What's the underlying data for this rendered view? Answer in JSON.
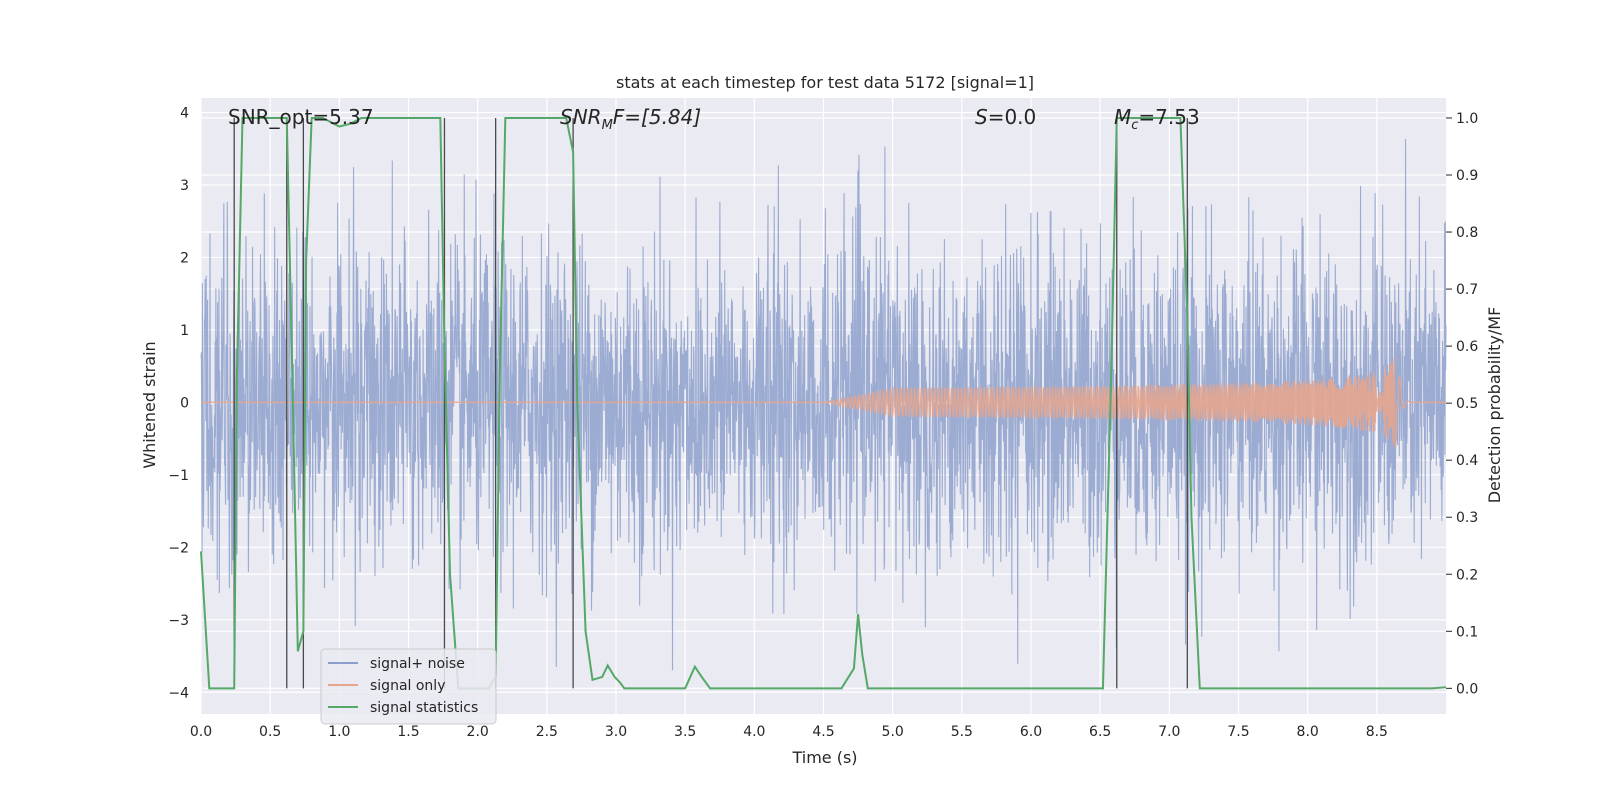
{
  "chart_data": {
    "type": "line",
    "title": "stats at each timestep for test data 5172 [signal=1]",
    "xlabel": "Time (s)",
    "ylabel_left": "Whitened strain",
    "ylabel_right": "Detection probability/MF",
    "xlim": [
      0.0,
      9.0
    ],
    "ylim_left": [
      -4.3,
      4.2
    ],
    "ylim_right": [
      -0.045,
      1.035
    ],
    "x_ticks": [
      "0.0",
      "0.5",
      "1.0",
      "1.5",
      "2.0",
      "2.5",
      "3.0",
      "3.5",
      "4.0",
      "4.5",
      "5.0",
      "5.5",
      "6.0",
      "6.5",
      "7.0",
      "7.5",
      "8.0",
      "8.5"
    ],
    "y_ticks_left": [
      "−4",
      "−3",
      "−2",
      "−1",
      "0",
      "1",
      "2",
      "3",
      "4"
    ],
    "y_ticks_right": [
      "0.0",
      "0.1",
      "0.2",
      "0.3",
      "0.4",
      "0.5",
      "0.6",
      "0.7",
      "0.8",
      "0.9",
      "1.0"
    ],
    "grid": true,
    "legend_position": "lower-left",
    "annotations": [
      {
        "label": "SNR_opt=5.37",
        "x": 0.2,
        "y": 3.85
      },
      {
        "label": "SNR_MF=[5.84]",
        "x": 2.6,
        "y": 3.85
      },
      {
        "label": "S=0.0",
        "x": 5.6,
        "y": 3.85
      },
      {
        "label": "M_c=7.53",
        "x": 6.6,
        "y": 3.85
      }
    ],
    "annotation_parts": {
      "snr_opt": "SNR_opt=5.37",
      "snr_mf_main": "SNR",
      "snr_mf_sub": "M",
      "snr_mf_rest": "F=[5.84]",
      "s_main": "S",
      "s_rest": "=0.0",
      "mc_main": "M",
      "mc_sub": "c",
      "mc_rest": "=7.53"
    },
    "vertical_lines_s": [
      0.24,
      0.62,
      0.74,
      1.76,
      2.13,
      2.69,
      6.62,
      7.13
    ],
    "series": [
      {
        "name": "signal+ noise",
        "color": "#8da0cb",
        "axis": "left",
        "description": "whitened strain, noise amplitude approx within [-3.7, 3.7]",
        "noise_sigma": 1.1,
        "noise_peak": 3.7
      },
      {
        "name": "signal only",
        "color": "#e5a58e",
        "axis": "left",
        "description": "chirp signal, amplitude growing to about 0.75 at t=8.65 s then ringdown",
        "chirp_start": 4.5,
        "chirp_merge": 8.65,
        "peak_amplitude": 0.75
      },
      {
        "name": "signal statistics",
        "color": "#55a868",
        "axis": "right",
        "x": [
          0.0,
          0.06,
          0.18,
          0.24,
          0.26,
          0.3,
          0.62,
          0.66,
          0.7,
          0.74,
          0.76,
          0.8,
          0.88,
          1.0,
          1.08,
          1.16,
          1.2,
          1.73,
          1.76,
          1.8,
          1.86,
          1.93,
          2.02,
          2.08,
          2.13,
          2.16,
          2.2,
          2.64,
          2.69,
          2.72,
          2.78,
          2.83,
          2.9,
          2.94,
          2.99,
          3.03,
          3.06,
          3.1,
          3.12,
          3.2,
          3.3,
          3.4,
          3.5,
          3.57,
          3.62,
          3.68,
          3.8,
          4.0,
          4.2,
          4.4,
          4.55,
          4.63,
          4.72,
          4.75,
          4.78,
          4.82,
          5.0,
          5.5,
          6.0,
          6.52,
          6.58,
          6.62,
          6.67,
          6.75,
          6.9,
          7.08,
          7.13,
          7.16,
          7.22,
          7.3,
          7.5,
          8.0,
          8.5,
          8.9,
          9.0
        ],
        "y": [
          0.24,
          0.0,
          0.0,
          0.0,
          0.55,
          1.0,
          1.0,
          0.55,
          0.065,
          0.1,
          0.75,
          1.0,
          1.0,
          0.985,
          0.99,
          1.0,
          1.0,
          1.0,
          0.6,
          0.2,
          0.0,
          0.0,
          0.0,
          0.0,
          0.02,
          0.55,
          1.0,
          1.0,
          0.94,
          0.5,
          0.1,
          0.015,
          0.02,
          0.04,
          0.02,
          0.01,
          0.0,
          0.0,
          0.0,
          0.0,
          0.0,
          0.0,
          0.0,
          0.038,
          0.02,
          0.0,
          0.0,
          0.0,
          0.0,
          0.0,
          0.0,
          0.0,
          0.035,
          0.13,
          0.06,
          0.0,
          0.0,
          0.0,
          0.0,
          0.0,
          0.55,
          1.0,
          1.0,
          1.0,
          1.0,
          1.0,
          0.65,
          0.3,
          0.0,
          0.0,
          0.0,
          0.0,
          0.0,
          0.0,
          0.002
        ]
      }
    ]
  },
  "legend": {
    "items": [
      {
        "label": "signal+ noise",
        "color": "#8da0cb"
      },
      {
        "label": "signal only",
        "color": "#e5a58e"
      },
      {
        "label": "signal statistics",
        "color": "#55a868"
      }
    ]
  }
}
